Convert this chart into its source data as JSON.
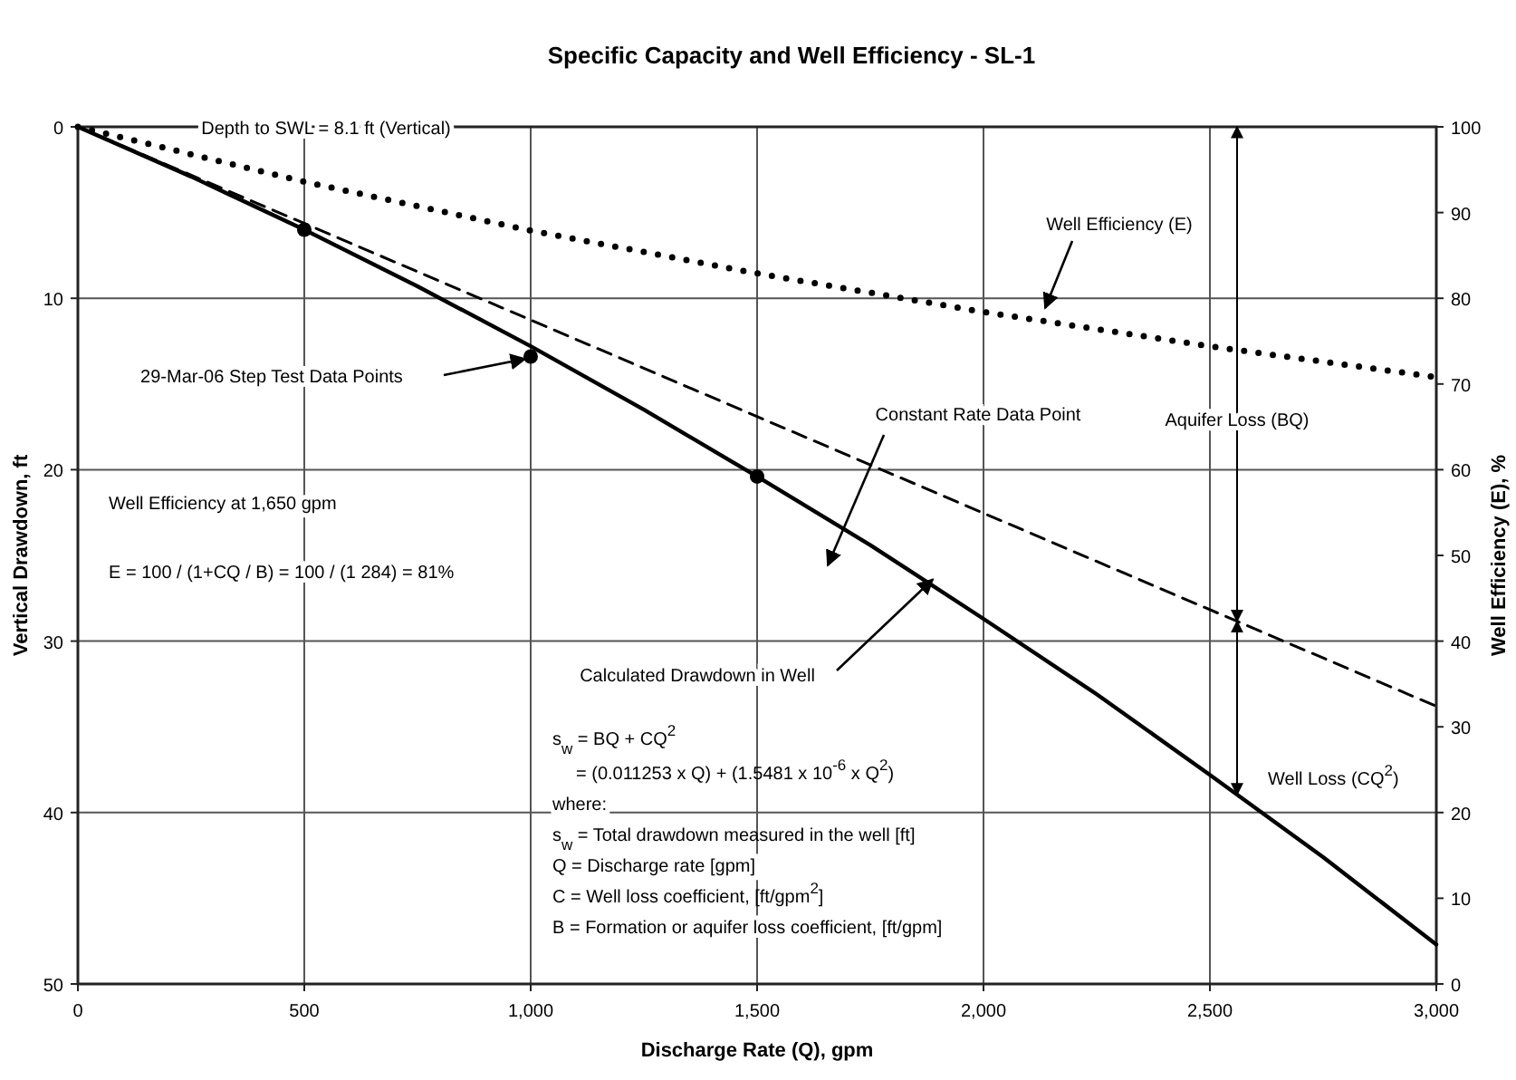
{
  "chart_data": {
    "type": "line",
    "title": "Specific Capacity and Well Efficiency - SL-1",
    "xlabel": "Discharge Rate (Q), gpm",
    "ylabel": "Vertical Drawdown, ft",
    "y2label": "Well Efficiency (E), %",
    "xlim": [
      0,
      3000
    ],
    "xticks": [
      0,
      500,
      {
        "value": 1000,
        "label": "1,000"
      },
      {
        "value": 1500,
        "label": "1,500"
      },
      {
        "value": 2000,
        "label": "2,000"
      },
      {
        "value": 2500,
        "label": "2,500"
      },
      {
        "value": 3000,
        "label": "3,000"
      }
    ],
    "ylim": [
      50,
      0
    ],
    "yticks": [
      0,
      10,
      20,
      30,
      40,
      50
    ],
    "y2lim": [
      0,
      100
    ],
    "y2ticks": [
      0,
      10,
      20,
      30,
      40,
      50,
      60,
      70,
      80,
      90,
      100
    ],
    "grid": true,
    "series": [
      {
        "color": "#000000",
        "line_style": "solid",
        "marker": "none",
        "x": [
          0,
          250,
          500,
          750,
          1000,
          1250,
          1500,
          1750,
          2000,
          2250,
          2500,
          2750,
          3000
        ],
        "values": [
          0,
          2.9,
          6.0,
          9.3,
          12.8,
          16.5,
          20.4,
          24.4,
          28.7,
          33.1,
          37.8,
          42.6,
          47.7
        ]
      },
      {
        "color": "#000000",
        "line_style": "dashed",
        "marker": "none",
        "x": [
          0,
          3000
        ],
        "values": [
          0,
          33.8
        ]
      },
      {
        "axis": "y2",
        "color": "#000000",
        "line_style": "dotted",
        "marker": "none",
        "x": [
          0,
          500,
          1000,
          1500,
          2000,
          2500,
          3000
        ],
        "values": [
          100,
          93.6,
          87.9,
          82.9,
          78.4,
          74.4,
          70.8
        ]
      },
      {
        "type": "scatter",
        "color": "#000000",
        "marker": "circle",
        "x": [
          500,
          1000,
          1500
        ],
        "values": [
          6.0,
          13.4,
          20.4
        ]
      }
    ],
    "annotations": [
      "Depth to SWL = 8.1 ft (Vertical)",
      "29-Mar-06 Step Test Data Points",
      "Well Efficiency (E)",
      "Constant Rate Data Point",
      {
        "text": "Calculated Drawdown in Well",
        "x": 1888,
        "y": 26.4
      },
      "Aquifer Loss (BQ)",
      "Well Loss (CQ$^{2}$)",
      "Well Efficiency at 1,650 gpm",
      "E = 100 / (1+CQ / B) = 100 / (1      284) = 81%",
      "s$_{w}$ = BQ + CQ$^{2}$",
      "= (0.011253 x Q) + (1.5481 x 10$^{-6}$ x Q$^{2}$)",
      "where:",
      "s$_{w}$ = Total drawdown measured in the well [ft]",
      "Q = Discharge rate [gpm]",
      "C = Well loss coefficient, [ft/gpm$^{2}$]",
      "B = Formation or aquifer loss coefficient, [ft/gpm]"
    ]
  }
}
